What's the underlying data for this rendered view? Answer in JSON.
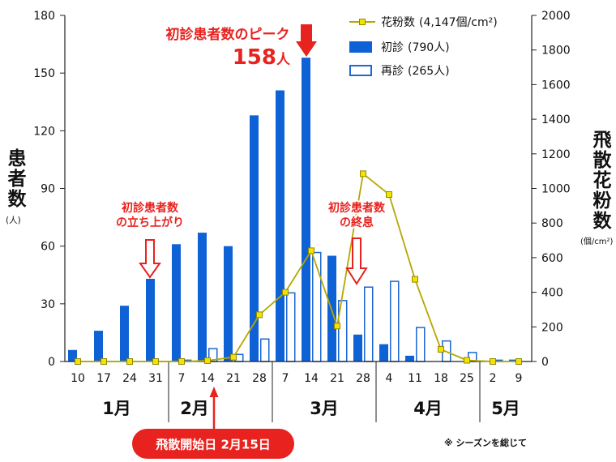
{
  "chart_data": {
    "type": "bar",
    "x_axis": {
      "groups": [
        {
          "label": "1月",
          "categories": [
            "10",
            "17",
            "24",
            "31"
          ]
        },
        {
          "label": "2月",
          "categories": [
            "7",
            "14",
            "21",
            "28"
          ]
        },
        {
          "label": "3月",
          "categories": [
            "7",
            "14",
            "21",
            "28"
          ]
        },
        {
          "label": "4月",
          "categories": [
            "4",
            "11",
            "18",
            "25"
          ]
        },
        {
          "label": "5月",
          "categories": [
            "2",
            "9"
          ]
        }
      ]
    },
    "y_left": {
      "label": "患者数",
      "unit": "(人)",
      "min": 0,
      "max": 180,
      "ticks": [
        0,
        30,
        60,
        90,
        120,
        150,
        180
      ]
    },
    "y_right": {
      "label": "飛散花粉数",
      "unit": "(個/cm²)",
      "min": 0,
      "max": 2000,
      "ticks": [
        0,
        200,
        400,
        600,
        800,
        1000,
        1200,
        1400,
        1600,
        1800,
        2000
      ]
    },
    "series": [
      {
        "name": "花粉数",
        "total": "(4,147個/cm²)",
        "type": "line",
        "axis": "right",
        "marker": "square",
        "color": "#b5a700",
        "marker_color": "#f2e300",
        "marker_edge_color": "#948800",
        "values": [
          0,
          0,
          0,
          0,
          0,
          5,
          25,
          270,
          400,
          640,
          205,
          1085,
          965,
          475,
          70,
          7,
          0,
          0
        ]
      },
      {
        "name": "初診",
        "total": "(790人)",
        "type": "bar",
        "style": "filled",
        "axis": "left",
        "color": "#0f62d6",
        "values": [
          6,
          16,
          29,
          43,
          61,
          67,
          60,
          128,
          141,
          158,
          55,
          14,
          9,
          3,
          0,
          0,
          0,
          1
        ]
      },
      {
        "name": "再診",
        "total": "(265人)",
        "type": "bar",
        "style": "outline",
        "axis": "left",
        "color": "#1b67d3",
        "values": [
          0,
          0,
          0,
          0,
          1,
          7,
          4,
          12,
          36,
          57,
          32,
          39,
          42,
          18,
          11,
          5,
          1,
          0
        ]
      }
    ],
    "legend_position": "top-right",
    "grid": false,
    "annotations": {
      "peak": {
        "text": "初診患者数のピーク",
        "value": "158",
        "unit": "人"
      },
      "onset": {
        "lines": [
          "初診患者数",
          "の立ち上がり"
        ]
      },
      "end": {
        "lines": [
          "初診患者数",
          "の終息"
        ]
      },
      "pollen_start": {
        "text": "飛散開始日 2月15日"
      },
      "footnote": "※ シーズンを総じて"
    },
    "colors": {
      "annotation": "#e8221e",
      "axis": "#222222",
      "background": "#ffffff"
    }
  }
}
